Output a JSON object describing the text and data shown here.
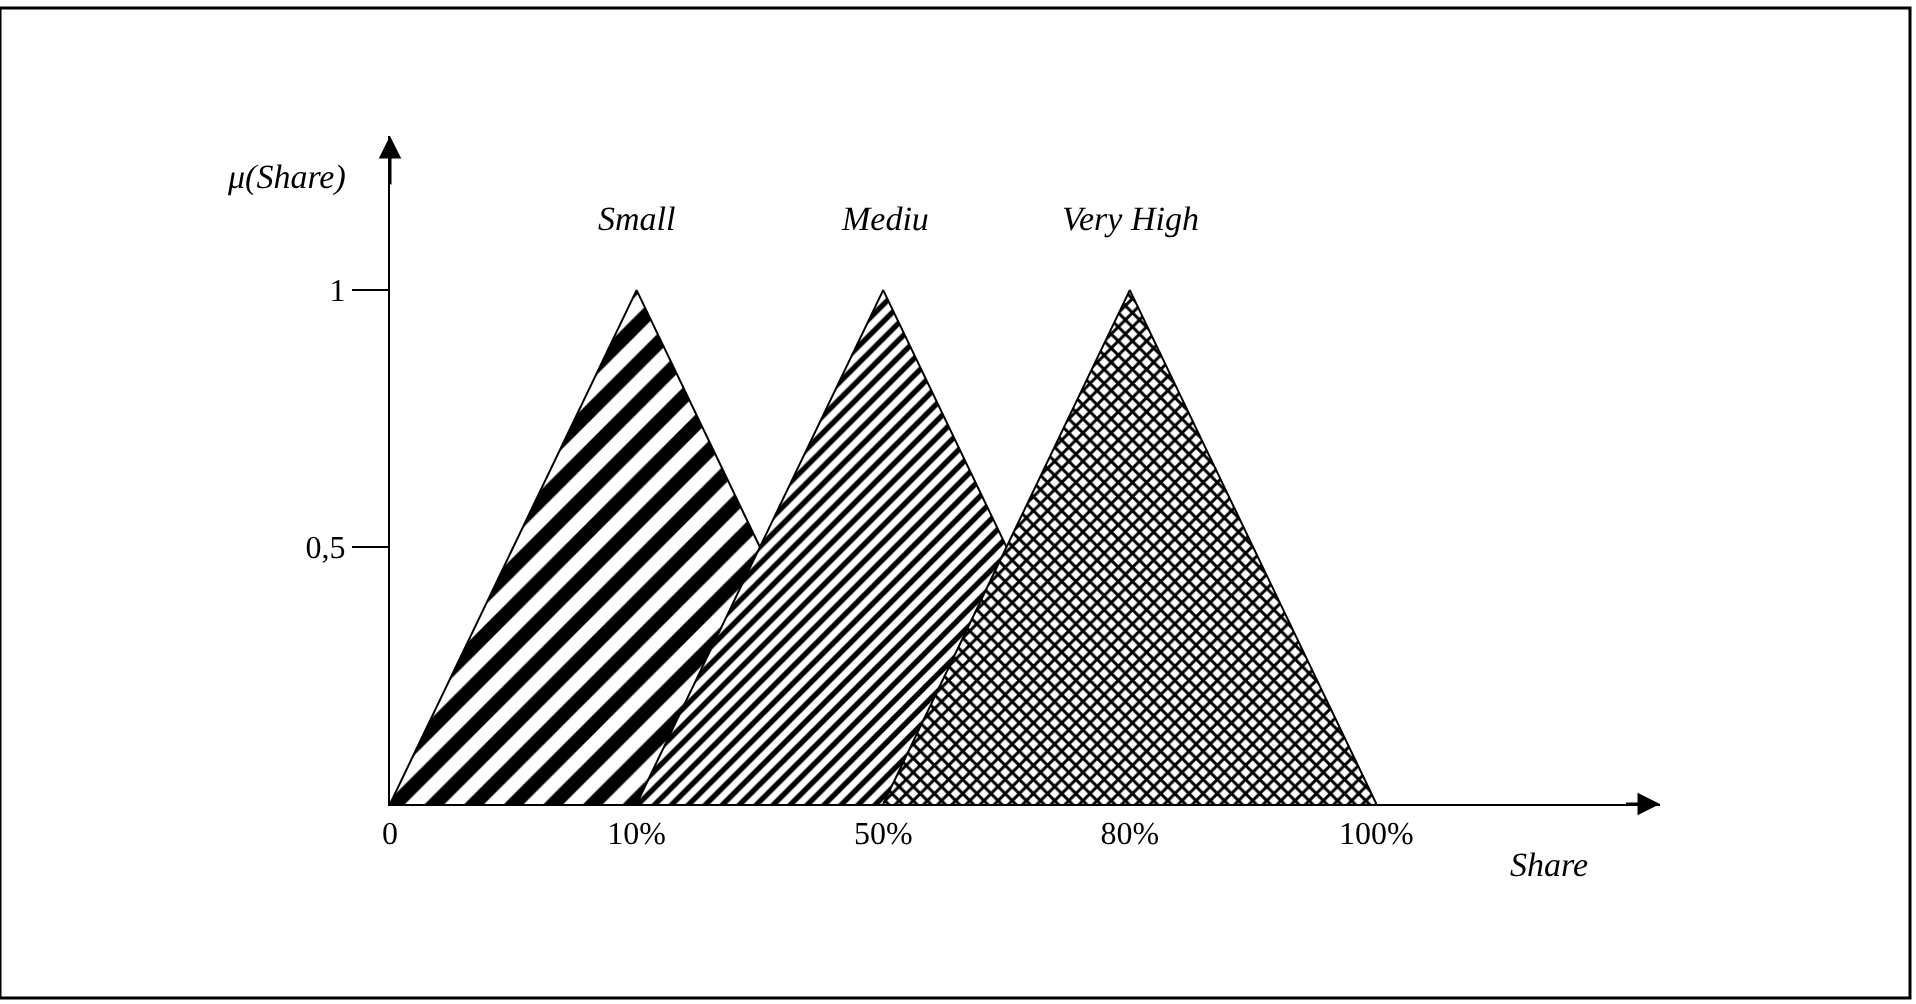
{
  "chart_data": {
    "type": "area",
    "xlabel": "Share",
    "ylabel": "μ(Share)",
    "categories": [
      "0",
      "10%",
      "50%",
      "80%",
      "100%"
    ],
    "series": [
      {
        "name": "Small",
        "color": "#000000",
        "values": [
          0,
          1,
          0,
          null,
          null
        ]
      },
      {
        "name": "Mediu",
        "color": "#000000",
        "values": [
          null,
          0,
          1,
          0,
          null
        ]
      },
      {
        "name": "Very High",
        "color": "#000000",
        "values": [
          null,
          null,
          0,
          1,
          0
        ]
      }
    ],
    "ylim": [
      0,
      1.3
    ],
    "yticks": [
      {
        "value": 0.5,
        "label": "0,5"
      },
      1
    ],
    "legend": false
  }
}
